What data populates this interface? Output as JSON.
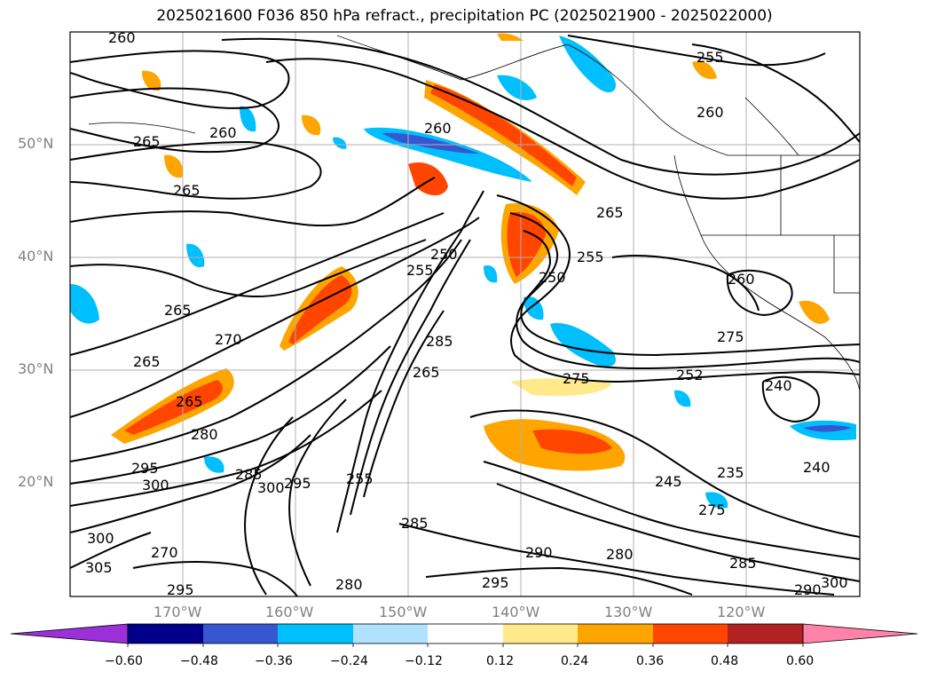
{
  "title": "2025021600 F036 850 hPa refract., precipitation PC (2025021900 - 2025022000)",
  "latitude_labels": [
    "50°N",
    "40°N",
    "30°N",
    "20°N"
  ],
  "longitude_labels": [
    "170°W",
    "160°W",
    "150°W",
    "140°W",
    "130°W",
    "120°W"
  ],
  "contour_labels": [
    "260",
    "255",
    "265",
    "260",
    "260",
    "265",
    "265",
    "265",
    "255",
    "250",
    "255",
    "250",
    "265",
    "270",
    "285",
    "265",
    "265",
    "275",
    "260",
    "252",
    "240",
    "280",
    "300",
    "295",
    "300",
    "285",
    "295",
    "275",
    "255",
    "245",
    "235",
    "240",
    "275",
    "285",
    "300",
    "290",
    "295",
    "280",
    "285",
    "270",
    "295",
    "280",
    "290",
    "300",
    "305",
    "260"
  ],
  "colorbar": {
    "tick_labels": [
      "−0.60",
      "−0.48",
      "−0.36",
      "−0.24",
      "−0.12",
      "0.12",
      "0.24",
      "0.36",
      "0.48",
      "0.60"
    ],
    "colors": [
      "#9b30d9",
      "#00008b",
      "#3657d0",
      "#00bfff",
      "#b0e2ff",
      "#ffffff",
      "#ffe98a",
      "#ffa500",
      "#ff4500",
      "#b22222",
      "#ff82ab"
    ]
  },
  "colors": {
    "frame": "#000000",
    "grid": "#b0b0b0",
    "axis_text": "#808080"
  }
}
